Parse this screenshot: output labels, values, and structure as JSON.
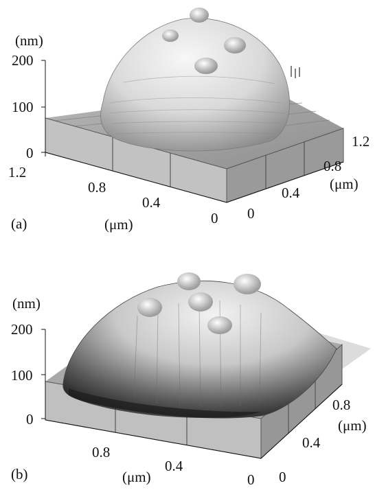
{
  "figure": {
    "panels": [
      {
        "label": "(a)",
        "z_unit": "(nm)",
        "z_ticks": [
          "200",
          "100",
          "0"
        ],
        "x_ticks": [
          "1.2",
          "0.8",
          "0.4",
          "0"
        ],
        "x_unit": "(μm)",
        "y_ticks": [
          "0",
          "0.4",
          "0.8",
          "1.2"
        ],
        "y_unit": "(μm)"
      },
      {
        "label": "(b)",
        "z_unit": "(nm)",
        "z_ticks": [
          "200",
          "100",
          "0"
        ],
        "x_ticks": [
          "0.8",
          "0.4",
          "0"
        ],
        "x_unit": "(μm)",
        "y_ticks": [
          "0",
          "0.4",
          "0.8"
        ],
        "y_unit": "(μm)"
      }
    ]
  },
  "colors": {
    "surface_light": "#f4f4f4",
    "surface_mid": "#a8a8a8",
    "surface_dark": "#2a2a2a",
    "base": "#b9b9b9",
    "base_side": "#8a8a8a",
    "floor": "#d6d6d6"
  }
}
